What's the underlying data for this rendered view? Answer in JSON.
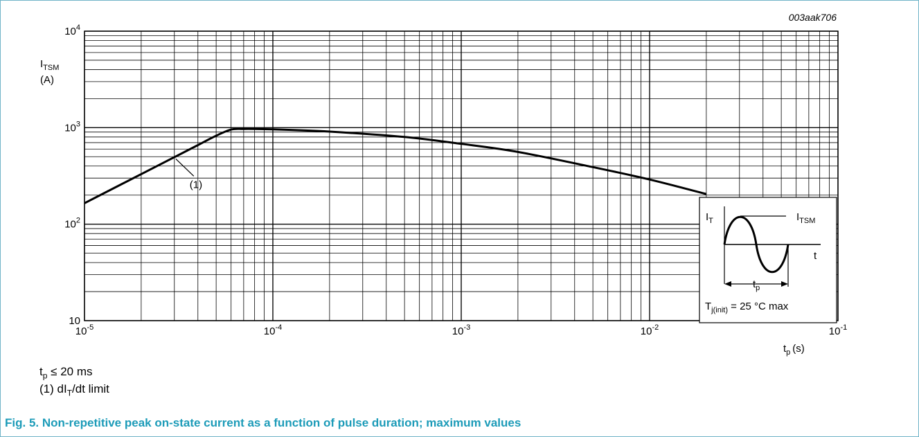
{
  "chart_data": {
    "type": "line",
    "code": "003aak706",
    "x_scale": "log",
    "y_scale": "log",
    "xlim": [
      1e-05,
      0.1
    ],
    "ylim": [
      10,
      10000
    ],
    "grid": true,
    "x_ticks": [
      {
        "value": 1e-05,
        "base": "10",
        "exp": "-5"
      },
      {
        "value": 0.0001,
        "base": "10",
        "exp": "-4"
      },
      {
        "value": 0.001,
        "base": "10",
        "exp": "-3"
      },
      {
        "value": 0.01,
        "base": "10",
        "exp": "-2"
      },
      {
        "value": 0.1,
        "base": "10",
        "exp": "-1"
      }
    ],
    "y_ticks": [
      {
        "value": 10,
        "base": "10",
        "exp": ""
      },
      {
        "value": 100,
        "base": "10",
        "exp": "2"
      },
      {
        "value": 1000,
        "base": "10",
        "exp": "3"
      },
      {
        "value": 10000,
        "base": "10",
        "exp": "4"
      }
    ],
    "ylabel": {
      "main": "I",
      "sub": "TSM",
      "unit": "(A)"
    },
    "xlabel": {
      "main": "t",
      "sub": "p",
      "unit": "(s)"
    },
    "series": [
      {
        "color": "#000000",
        "x": [
          1e-05,
          2e-05,
          3e-05,
          4e-05,
          5e-05,
          6e-05,
          7e-05,
          0.0001,
          0.0002,
          0.0005,
          0.001,
          0.002,
          0.005,
          0.01,
          0.02
        ],
        "y": [
          165,
          330,
          495,
          660,
          825,
          955,
          970,
          960,
          910,
          800,
          680,
          560,
          390,
          290,
          205
        ]
      }
    ],
    "annotation": {
      "text": "(1)",
      "x": 3e-05,
      "y": 500
    },
    "inset": {
      "label_it": {
        "main": "I",
        "sub": "T"
      },
      "label_itsm": {
        "main": "I",
        "sub": "TSM"
      },
      "label_t": "t",
      "label_tp": {
        "main": "t",
        "sub": "p"
      },
      "condition": {
        "main": "T",
        "sub": "j(init)",
        "rest": " = 25 °C max"
      }
    }
  },
  "notes": {
    "tp_main": "t",
    "tp_sub": "p",
    "tp_rest": " ≤ 20 ms",
    "limit_prefix": "(1) dI",
    "limit_sub": "T",
    "limit_rest": "/dt limit"
  },
  "caption": "Fig. 5. Non-repetitive peak on-state current as a function of pulse duration; maximum values"
}
